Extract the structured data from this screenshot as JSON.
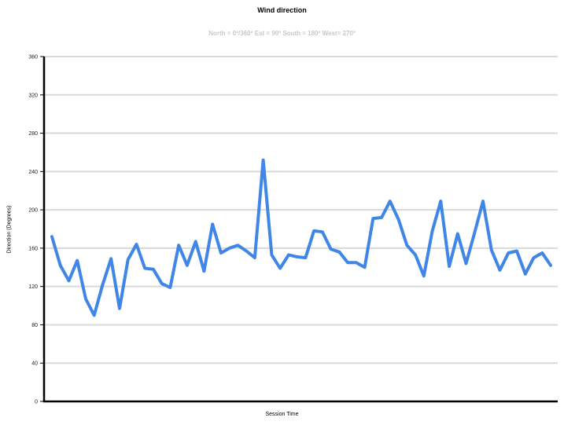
{
  "chart_data": {
    "type": "line",
    "title": "Wind direction",
    "subtitle": "North = 0º/360º Est = 90º South = 180º West= 270º",
    "xlabel": "Session Time",
    "ylabel": "Direction (Degrees)",
    "ylim": [
      0,
      360
    ],
    "yticks": [
      "0",
      "40",
      "80",
      "120",
      "160",
      "200",
      "240",
      "280",
      "320",
      "360"
    ],
    "grid": true,
    "line_color": "#3f86e6",
    "grid_color": "#d9d9d9",
    "series": [
      {
        "values": [
          172,
          142,
          126,
          147,
          107,
          90,
          122,
          149,
          97,
          148,
          164,
          139,
          138,
          123,
          119,
          163,
          142,
          167,
          136,
          185,
          155,
          160,
          163,
          157,
          150,
          252,
          153,
          139,
          153,
          151,
          150,
          178,
          177,
          159,
          156,
          145,
          145,
          140,
          191,
          192,
          209,
          190,
          163,
          153,
          131,
          178,
          209,
          141,
          175,
          144,
          176,
          209,
          158,
          137,
          155,
          157,
          133,
          150,
          155,
          142
        ]
      }
    ]
  }
}
